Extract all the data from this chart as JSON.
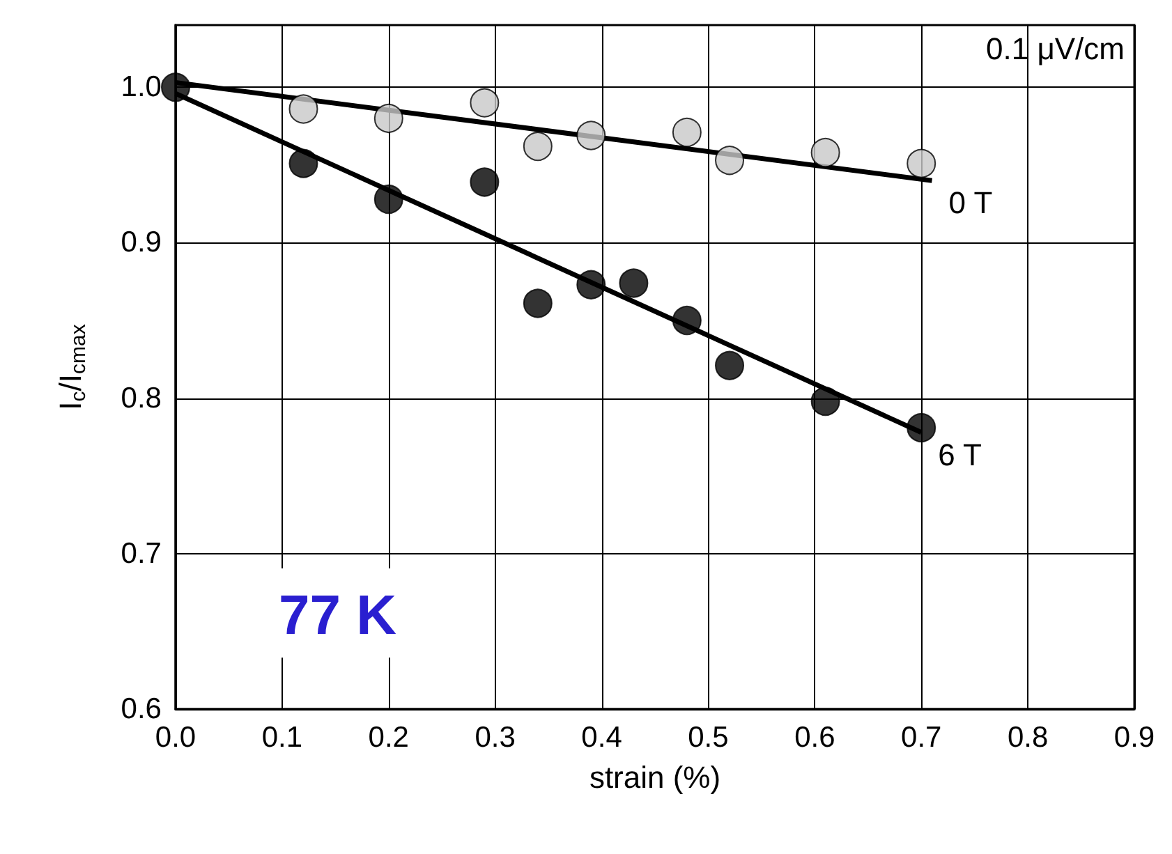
{
  "chart_data": {
    "type": "scatter",
    "xlabel": "strain (%)",
    "ylabel": "I$_{c}$/I$_{cmax}$",
    "xlim": [
      0,
      0.9
    ],
    "ylim": [
      0.6,
      1.04
    ],
    "xticks": [
      {
        "value": 0,
        "label": "0.0"
      },
      0.1,
      0.2,
      0.3,
      0.4,
      0.5,
      0.6,
      0.7,
      0.8,
      0.9
    ],
    "yticks": [
      0.6,
      0.7,
      0.8,
      0.9,
      {
        "value": 1,
        "label": "1.0"
      }
    ],
    "grid": true,
    "legend": false,
    "series": [
      {
        "marker": "circle",
        "color": "#c8c8c8",
        "x": [
          0.12,
          0.2,
          0.29,
          0.34,
          0.39,
          0.48,
          0.52,
          0.61,
          0.7
        ],
        "values": [
          0.986,
          0.98,
          0.99,
          0.962,
          0.969,
          0.971,
          0.953,
          0.958,
          0.951
        ]
      },
      {
        "marker": "circle",
        "color": "#000000",
        "x": [
          0,
          0.12,
          0.2,
          0.29,
          0.34,
          0.39,
          0.43,
          0.48,
          0.52,
          0.61,
          0.7
        ],
        "values": [
          1.0,
          0.951,
          0.928,
          0.939,
          0.861,
          0.873,
          0.874,
          0.85,
          0.821,
          0.798,
          0.781
        ]
      },
      {
        "type": "line",
        "name": "0 T",
        "marker": "none",
        "color": "#000000",
        "x": [
          0,
          0.71
        ],
        "values": [
          1.003,
          0.94
        ]
      },
      {
        "type": "line",
        "name": "6 T",
        "marker": "none",
        "color": "#000000",
        "x": [
          0,
          0.7
        ],
        "values": [
          0.996,
          0.778
        ]
      }
    ],
    "annotations": [
      "0.1 μV/cm",
      "77 K"
    ]
  }
}
